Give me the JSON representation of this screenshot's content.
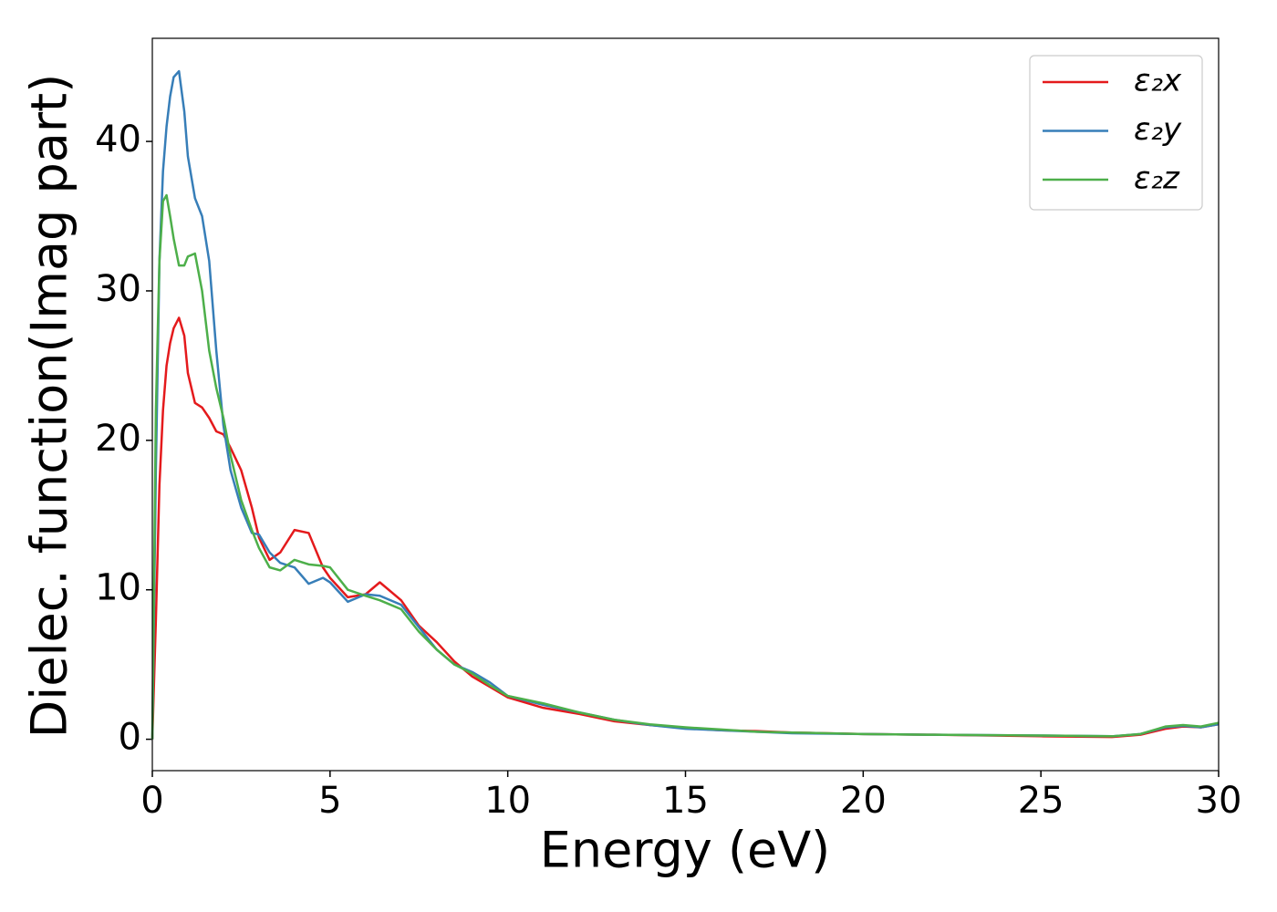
{
  "chart_data": {
    "type": "line",
    "xlabel": "Energy (eV)",
    "ylabel": "Dielec. function(Imag part)",
    "x": [
      0,
      0.1,
      0.2,
      0.3,
      0.4,
      0.5,
      0.6,
      0.75,
      0.9,
      1.0,
      1.2,
      1.4,
      1.6,
      1.8,
      2.0,
      2.2,
      2.5,
      2.8,
      3.0,
      3.3,
      3.6,
      4.0,
      4.4,
      4.8,
      5.0,
      5.5,
      6.0,
      6.4,
      7.0,
      7.5,
      8.0,
      8.5,
      9.0,
      9.5,
      10,
      11,
      12,
      13,
      14,
      15,
      16,
      17,
      18,
      20,
      22,
      25,
      27,
      27.8,
      28.5,
      29,
      29.5,
      30
    ],
    "series": [
      {
        "name": "ε₂x",
        "color": "#e41a1c",
        "values": [
          0,
          8,
          17,
          22,
          25,
          26.5,
          27.5,
          28.2,
          27,
          24.5,
          22.5,
          22.2,
          21.5,
          20.6,
          20.4,
          19.5,
          18,
          15.5,
          13.5,
          12,
          12.5,
          14,
          13.8,
          11.5,
          10.8,
          9.5,
          9.7,
          10.5,
          9.3,
          7.6,
          6.5,
          5.2,
          4.2,
          3.5,
          2.8,
          2.1,
          1.7,
          1.2,
          0.95,
          0.75,
          0.6,
          0.55,
          0.45,
          0.35,
          0.3,
          0.2,
          0.15,
          0.3,
          0.7,
          0.85,
          0.8,
          1.0
        ]
      },
      {
        "name": "ε₂y",
        "color": "#377eb8",
        "values": [
          0,
          18,
          32,
          38,
          41,
          43,
          44.3,
          44.7,
          42,
          39,
          36.2,
          35,
          32,
          26,
          21,
          18,
          15.5,
          13.8,
          13.7,
          12.5,
          11.8,
          11.5,
          10.4,
          10.8,
          10.5,
          9.2,
          9.7,
          9.6,
          9,
          7.5,
          6,
          5,
          4.5,
          3.8,
          2.9,
          2.3,
          1.8,
          1.3,
          0.95,
          0.7,
          0.6,
          0.5,
          0.4,
          0.35,
          0.3,
          0.25,
          0.2,
          0.35,
          0.8,
          0.9,
          0.8,
          1.0
        ]
      },
      {
        "name": "ε₂z",
        "color": "#4daf4a",
        "values": [
          0,
          22,
          32,
          36,
          36.4,
          35,
          33.5,
          31.7,
          31.7,
          32.3,
          32.5,
          30,
          26,
          23.5,
          21.5,
          19,
          16,
          14,
          12.8,
          11.5,
          11.3,
          12.0,
          11.7,
          11.6,
          11.5,
          10,
          9.6,
          9.3,
          8.7,
          7.2,
          6,
          5,
          4.4,
          3.6,
          2.9,
          2.4,
          1.8,
          1.3,
          1.0,
          0.8,
          0.65,
          0.5,
          0.45,
          0.35,
          0.3,
          0.25,
          0.2,
          0.35,
          0.85,
          0.95,
          0.85,
          1.1
        ]
      }
    ],
    "xlim": [
      0,
      30
    ],
    "xticks": [
      0,
      5,
      10,
      15,
      20,
      25,
      30
    ],
    "ylim": [
      -2.1,
      46.9
    ],
    "yticks": [
      0,
      10,
      20,
      30,
      40
    ],
    "grid": false,
    "legend": "upper right"
  }
}
